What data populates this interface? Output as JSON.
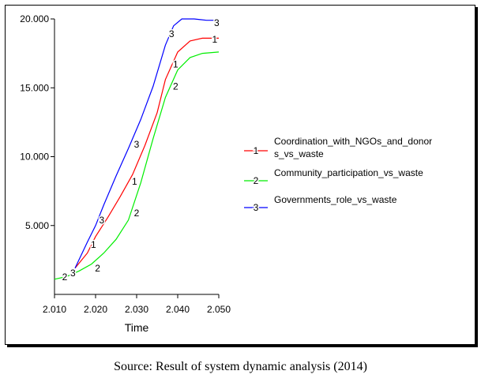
{
  "chart_data": {
    "type": "line",
    "xlabel": "Time",
    "ylabel": "",
    "xlim": [
      2010,
      2050
    ],
    "ylim": [
      0,
      20000
    ],
    "x_ticks": [
      2010,
      2020,
      2030,
      2040,
      2050
    ],
    "x_tick_labels": [
      "2.010",
      "2.020",
      "2.030",
      "2.040",
      "2.050"
    ],
    "y_ticks": [
      5000,
      10000,
      15000,
      20000
    ],
    "y_tick_labels": [
      "5.000",
      "10.000",
      "15.000",
      "20.000"
    ],
    "grid": false,
    "legend_position": "right",
    "series": [
      {
        "name": "Coordination_with_NGOs_and_donor s_vs_waste",
        "marker": "1",
        "color": "#ff0000",
        "x": [
          2015,
          2018,
          2020,
          2023,
          2026,
          2029,
          2032,
          2035,
          2037,
          2040,
          2043,
          2046,
          2050
        ],
        "y": [
          1900,
          3000,
          4200,
          5600,
          7100,
          8700,
          10800,
          13200,
          15600,
          17600,
          18400,
          18600,
          18600
        ],
        "label_x": [
          2019.5,
          2029.5,
          2039.5,
          2049
        ],
        "label_y": [
          3600,
          8200,
          16700,
          18500
        ]
      },
      {
        "name": "Community_participation_vs_waste",
        "marker": "2",
        "color": "#00ee00",
        "x": [
          2010,
          2013,
          2016,
          2019,
          2022,
          2025,
          2028,
          2031,
          2034,
          2037,
          2040,
          2043,
          2046,
          2050
        ],
        "y": [
          1100,
          1300,
          1700,
          2200,
          3000,
          4000,
          5400,
          8100,
          11300,
          14300,
          16300,
          17200,
          17500,
          17600
        ],
        "label_x": [
          2012.5,
          2020.5,
          2030,
          2039.5
        ],
        "label_y": [
          1250,
          1900,
          5900,
          15100
        ]
      },
      {
        "name": "Governments_role_vs_waste",
        "marker": "3",
        "color": "#0000ff",
        "x": [
          2015,
          2018,
          2020,
          2022,
          2025,
          2028,
          2031,
          2034,
          2037,
          2039,
          2041,
          2044,
          2047,
          2050
        ],
        "y": [
          1900,
          3800,
          5000,
          6500,
          8600,
          10600,
          12700,
          15100,
          18100,
          19500,
          20000,
          20000,
          19900,
          19900
        ],
        "label_x": [
          2014.5,
          2021.5,
          2030,
          2038.5,
          2049.5
        ],
        "label_y": [
          1550,
          5400,
          10900,
          18900,
          19700
        ]
      }
    ]
  },
  "caption": "Source: Result of system dynamic analysis (2014)"
}
